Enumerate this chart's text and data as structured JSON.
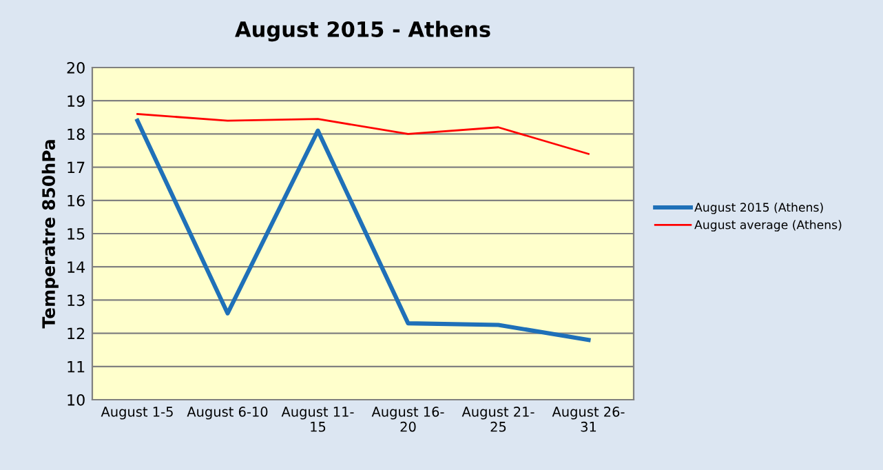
{
  "chart_data": {
    "type": "line",
    "title": "August 2015 - Athens",
    "ylabel": "Temperatre 850hPa",
    "categories": [
      "August 1-5",
      "August 6-10",
      "August 11-15",
      "August 16-20",
      "August 21-25",
      "August 26-31"
    ],
    "series": [
      {
        "name": "August 2015 (Athens)",
        "color": "#1f70b8",
        "values": [
          18.4,
          12.6,
          18.1,
          12.3,
          12.25,
          11.8
        ]
      },
      {
        "name": "August average (Athens)",
        "color": "#ff0000",
        "values": [
          18.6,
          18.4,
          18.45,
          18.0,
          18.2,
          17.4
        ]
      }
    ],
    "ylim": [
      10,
      20
    ],
    "yticks": [
      10,
      11,
      12,
      13,
      14,
      15,
      16,
      17,
      18,
      19,
      20
    ],
    "grid": "y",
    "legend": "right",
    "marker": "none",
    "line_style": "solid"
  }
}
